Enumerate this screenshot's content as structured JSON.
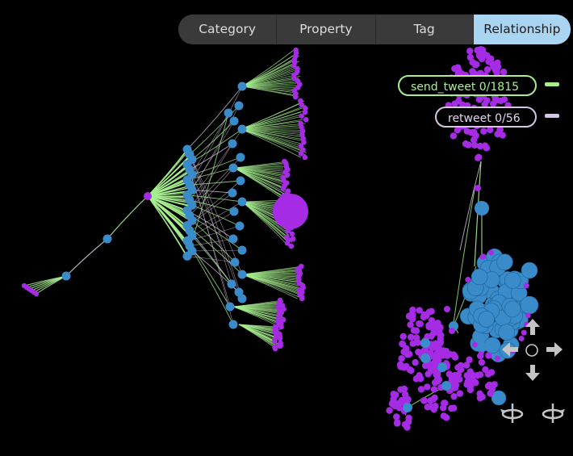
{
  "tabs": [
    {
      "label": "Category",
      "active": false
    },
    {
      "label": "Property",
      "active": false
    },
    {
      "label": "Tag",
      "active": false
    },
    {
      "label": "Relationship",
      "active": true
    }
  ],
  "legend": [
    {
      "label": "send_tweet 0/1815",
      "color": "#a6ee8e"
    },
    {
      "label": "retweet 0/56",
      "color": "#d7c4e4"
    }
  ],
  "colors": {
    "user_node": "#3a8bc9",
    "tweet_node": "#a52be4",
    "send_edge": "#a6ee8e",
    "retweet_edge": "#d7c4e4",
    "tab_active_bg": "#a9d4f2"
  },
  "navigation": {
    "icons": [
      "pan-up-icon",
      "pan-down-icon",
      "pan-left-icon",
      "pan-right-icon",
      "center-icon",
      "rotate-left-icon",
      "rotate-right-icon"
    ]
  }
}
